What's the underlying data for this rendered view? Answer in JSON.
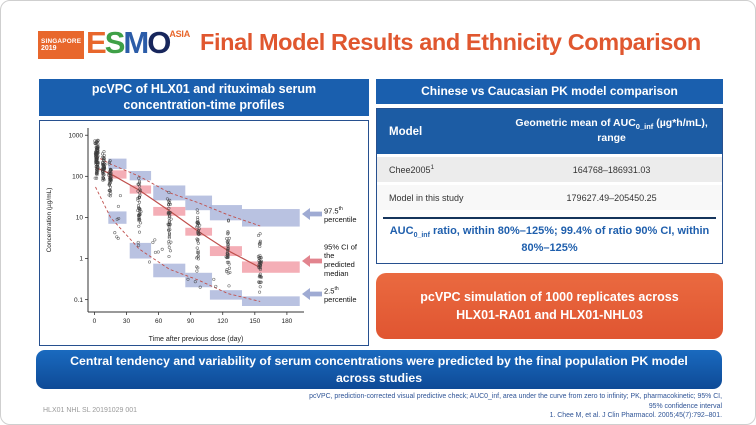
{
  "colors": {
    "header_blue": "#1A5FAE",
    "table_header_blue": "#1C5CA4",
    "title_orange": "#E0572F",
    "callout_orange": "#E4603A",
    "banner_blue": "#1258A8",
    "note_blue": "#1F5FAD",
    "band_blue": "#AAB5DA",
    "band_pink": "#F19CA6",
    "line_red": "#C0504D"
  },
  "logo": {
    "venue": "SINGAPORE",
    "year": "2019",
    "letters": [
      {
        "ch": "E",
        "color": "#E8672C"
      },
      {
        "ch": "S",
        "color": "#3FA047"
      },
      {
        "ch": "M",
        "color": "#2B5CA8"
      },
      {
        "ch": "O",
        "color": "#17265C"
      }
    ],
    "suffix": "ASIA"
  },
  "title": "Final Model Results and Ethnicity Comparison",
  "left_panel": {
    "header": "pcVPC of HLX01 and rituximab serum concentration-time profiles",
    "annotations": [
      {
        "pre": "97.5",
        "sup": "th",
        "post": " percentile",
        "arrow_color": "#9FABD3"
      },
      {
        "pre": "95% CI",
        "sup": "",
        "post": " of the predicted median",
        "arrow_color": "#E2848E"
      },
      {
        "pre": "2.5",
        "sup": "th",
        "post": " percentile",
        "arrow_color": "#9FABD3"
      }
    ]
  },
  "right_panel": {
    "header": "Chinese vs Caucasian PK model comparison",
    "table": {
      "model_header": "Model",
      "value_header": {
        "pre": "Geometric mean of AUC",
        "sub": "0_inf",
        "post": " (µg*h/mL), range"
      },
      "rows": [
        {
          "model": "Chee2005",
          "model_sup": "1",
          "value": "164768–186931.03"
        },
        {
          "model": "Model in this study",
          "model_sup": "",
          "value": "179627.49–205450.25"
        }
      ]
    },
    "note": {
      "pre": "AUC",
      "sub": "0_inf",
      "post": " ratio, within 80%–125%; 99.4% of ratio 90% CI, within 80%–125%"
    },
    "callout": "pcVPC simulation of 1000 replicates across HLX01-RA01 and HLX01-NHL03"
  },
  "banner": "Central tendency and variability of serum concentrations were predicted by the final population PK model across studies",
  "footnotes": {
    "line1": "pcVPC, prediction-corrected visual predictive check; AUC0_inf, area under the curve from zero to infinity; PK, pharmacokinetic; 95% CI,",
    "line2": "95% confidence interval",
    "reference": "1. Chee M, et al. J Clin Pharmacol. 2005;45(7):792–801."
  },
  "slide_code": "HLX01 NHL SL 20191029 001",
  "chart_data": {
    "type": "scatter",
    "title": "pcVPC of HLX01 and rituximab serum concentration-time profiles",
    "xlabel": "Time after previous dose (day)",
    "ylabel": "Concentration (µg/mL)",
    "xlim": [
      -6,
      196
    ],
    "xticks": [
      0,
      30,
      60,
      90,
      120,
      150,
      180
    ],
    "yscale": "log",
    "ylim": [
      0.05,
      1500
    ],
    "yticks": [
      0.1,
      1,
      10,
      100,
      1000
    ],
    "ytick_labels": [
      "0.1",
      "1",
      "10",
      "100",
      "1000"
    ],
    "percentile_box_color": "#AAB5DA",
    "median_box_color": "#F19CA6",
    "line_color": "#C0504D",
    "upper_percentile_boxes": [
      [
        13,
        30,
        150,
        270
      ],
      [
        33,
        53,
        80,
        135
      ],
      [
        55,
        85,
        26,
        60
      ],
      [
        85,
        110,
        15,
        34
      ],
      [
        108,
        138,
        8.5,
        20
      ],
      [
        138,
        192,
        6,
        16
      ]
    ],
    "median_ci_boxes": [
      [
        13,
        30,
        88,
        140
      ],
      [
        33,
        53,
        38,
        60
      ],
      [
        55,
        85,
        11,
        18
      ],
      [
        85,
        110,
        3.6,
        5.6
      ],
      [
        108,
        138,
        1.15,
        2.0
      ],
      [
        138,
        192,
        0.45,
        0.85
      ]
    ],
    "lower_percentile_boxes": [
      [
        13,
        30,
        7,
        14
      ],
      [
        33,
        53,
        1.0,
        2.4
      ],
      [
        55,
        85,
        0.35,
        0.75
      ],
      [
        85,
        110,
        0.2,
        0.45
      ],
      [
        108,
        138,
        0.1,
        0.17
      ],
      [
        138,
        192,
        0.07,
        0.12
      ]
    ],
    "median_line": [
      [
        1,
        165
      ],
      [
        15,
        115
      ],
      [
        42,
        46
      ],
      [
        70,
        14.5
      ],
      [
        97,
        4.6
      ],
      [
        125,
        1.55
      ],
      [
        155,
        0.6
      ]
    ],
    "upper_dashed_line": [
      [
        1,
        310
      ],
      [
        15,
        200
      ],
      [
        42,
        100
      ],
      [
        70,
        40
      ],
      [
        97,
        23
      ],
      [
        125,
        11.5
      ],
      [
        155,
        6.2
      ]
    ],
    "lower_dashed_line": [
      [
        1,
        55
      ],
      [
        15,
        10
      ],
      [
        42,
        1.7
      ],
      [
        70,
        0.55
      ],
      [
        97,
        0.3
      ],
      [
        125,
        0.14
      ],
      [
        155,
        0.09
      ]
    ],
    "observed_clusters": [
      {
        "x": 2.2,
        "x_spread": 1.8,
        "y_min": 70,
        "y_max": 980,
        "n": 85
      },
      {
        "x": 8.5,
        "x_spread": 1.6,
        "y_min": 55,
        "y_max": 420,
        "n": 48
      },
      {
        "x": 14.5,
        "x_spread": 1.6,
        "y_min": 32,
        "y_max": 300,
        "n": 45
      },
      {
        "x": 22,
        "x_spread": 4,
        "y_min": 2,
        "y_max": 60,
        "n": 7
      },
      {
        "x": 42,
        "x_spread": 2,
        "y_min": 1.6,
        "y_max": 120,
        "n": 42
      },
      {
        "x": 70,
        "x_spread": 2,
        "y_min": 0.9,
        "y_max": 60,
        "n": 40
      },
      {
        "x": 97,
        "x_spread": 2,
        "y_min": 0.35,
        "y_max": 28,
        "n": 36
      },
      {
        "x": 125,
        "x_spread": 2,
        "y_min": 0.16,
        "y_max": 13,
        "n": 36
      },
      {
        "x": 155,
        "x_spread": 2,
        "y_min": 0.08,
        "y_max": 7,
        "n": 42
      },
      {
        "x": 55,
        "x_spread": 12,
        "y_min": 0.4,
        "y_max": 5,
        "n": 6
      },
      {
        "x": 105,
        "x_spread": 25,
        "y_min": 0.1,
        "y_max": 0.5,
        "n": 5
      }
    ]
  }
}
